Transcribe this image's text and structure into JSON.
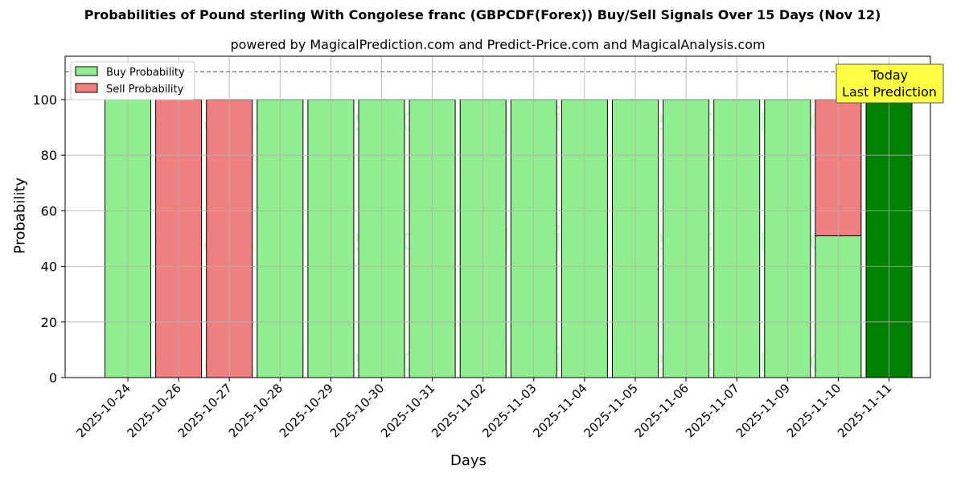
{
  "chart_data": {
    "type": "bar",
    "stacked": true,
    "title": "Probabilities of Pound sterling With Congolese franc (GBPCDF(Forex)) Buy/Sell Signals Over 15 Days (Nov 12)",
    "subtitle": "powered by MagicalPrediction.com and Predict-Price.com and MagicalAnalysis.com",
    "xlabel": "Days",
    "ylabel": "Probability",
    "ylim": [
      0,
      115
    ],
    "yticks": [
      0,
      20,
      40,
      60,
      80,
      100
    ],
    "grid": true,
    "legend_position": "upper left",
    "reference_line": 110,
    "categories": [
      "2025-10-24",
      "2025-10-26",
      "2025-10-27",
      "2025-10-28",
      "2025-10-29",
      "2025-10-30",
      "2025-10-31",
      "2025-11-02",
      "2025-11-03",
      "2025-11-04",
      "2025-11-05",
      "2025-11-06",
      "2025-11-07",
      "2025-11-09",
      "2025-11-10",
      "2025-11-11"
    ],
    "series": [
      {
        "name": "Buy Probability",
        "color": "#90ee90",
        "values": [
          100,
          0,
          0,
          100,
          100,
          100,
          100,
          100,
          100,
          100,
          100,
          100,
          100,
          100,
          51,
          100
        ]
      },
      {
        "name": "Sell Probability",
        "color": "#f08080",
        "values": [
          0,
          100,
          100,
          0,
          0,
          0,
          0,
          0,
          0,
          0,
          0,
          0,
          0,
          0,
          49,
          0
        ]
      }
    ],
    "today_index": 15,
    "today_color": "#008000",
    "annotation": {
      "line1": "Today",
      "line2": "Last Prediction",
      "color": "#ffff44"
    },
    "watermarks": [
      "MagicalAnalysis.com",
      "MagicalPrediction.com"
    ]
  }
}
